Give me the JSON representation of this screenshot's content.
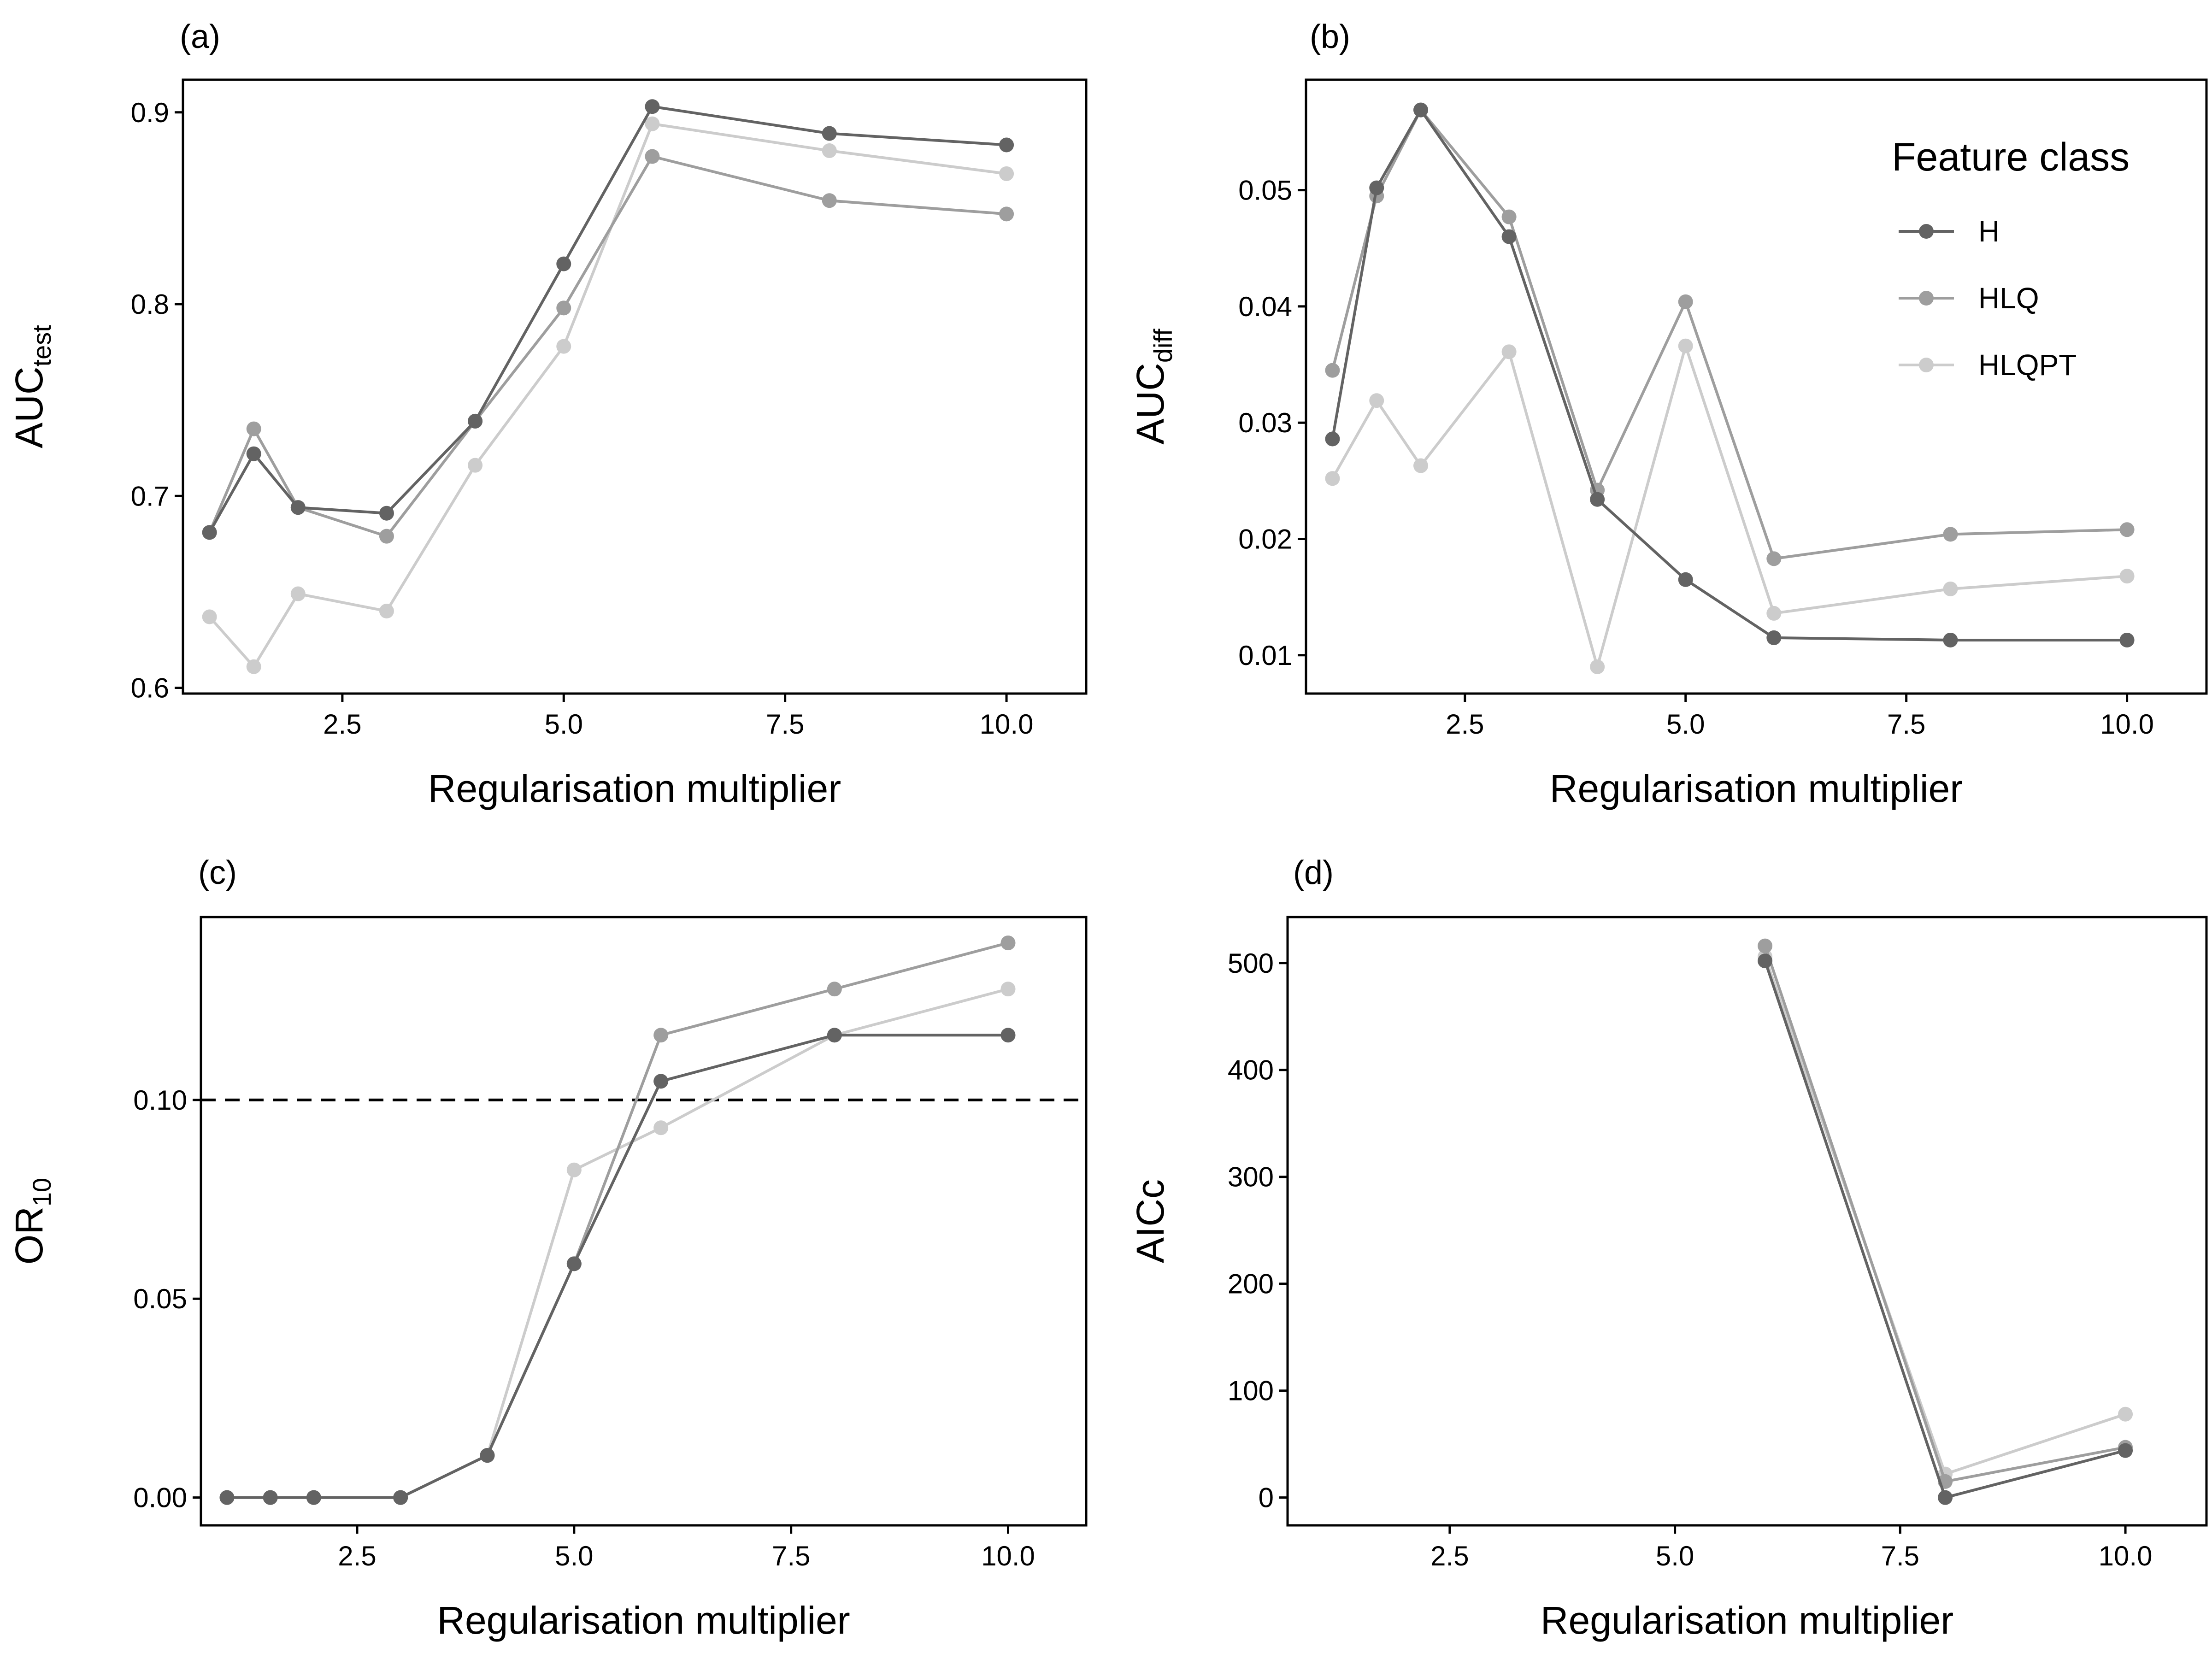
{
  "colors": {
    "H": "#636363",
    "HLQ": "#9e9e9e",
    "HLQPT": "#cccccc",
    "axis": "#000000",
    "reference_line": "#000000"
  },
  "legend": {
    "title": "Feature class",
    "entries": [
      {
        "key": "H",
        "label": "H"
      },
      {
        "key": "HLQ",
        "label": "HLQ"
      },
      {
        "key": "HLQPT",
        "label": "HLQPT"
      }
    ]
  },
  "chart_data": [
    {
      "type": "line",
      "tag": "(a)",
      "xlabel": "Regularisation multiplier",
      "ylabel_main": "AUC",
      "ylabel_sub": "test",
      "xlim": [
        0.7,
        10.9
      ],
      "ylim": [
        0.597,
        0.917
      ],
      "xticks": [
        2.5,
        5.0,
        7.5,
        10.0
      ],
      "xtick_labels": [
        "2.5",
        "5.0",
        "7.5",
        "10.0"
      ],
      "yticks": [
        0.6,
        0.7,
        0.8,
        0.9
      ],
      "ytick_labels": [
        "0.6",
        "0.7",
        "0.8",
        "0.9"
      ],
      "legend": false,
      "series": [
        {
          "name": "H",
          "x": [
            1,
            1.5,
            2,
            3,
            4,
            5,
            6,
            8,
            10
          ],
          "y": [
            0.681,
            0.722,
            0.694,
            0.691,
            0.739,
            0.821,
            0.903,
            0.889,
            0.883
          ]
        },
        {
          "name": "HLQ",
          "x": [
            1,
            1.5,
            2,
            3,
            4,
            5,
            6,
            8,
            10
          ],
          "y": [
            0.681,
            0.735,
            0.694,
            0.679,
            0.739,
            0.798,
            0.877,
            0.854,
            0.847
          ]
        },
        {
          "name": "HLQPT",
          "x": [
            1,
            1.5,
            2,
            3,
            4,
            5,
            6,
            8,
            10
          ],
          "y": [
            0.637,
            0.611,
            0.649,
            0.64,
            0.716,
            0.778,
            0.894,
            0.88,
            0.868
          ]
        }
      ]
    },
    {
      "type": "line",
      "tag": "(b)",
      "xlabel": "Regularisation multiplier",
      "ylabel_main": "AUC",
      "ylabel_sub": "diff",
      "xlim": [
        0.7,
        10.9
      ],
      "ylim": [
        0.0067,
        0.0595
      ],
      "xticks": [
        2.5,
        5.0,
        7.5,
        10.0
      ],
      "xtick_labels": [
        "2.5",
        "5.0",
        "7.5",
        "10.0"
      ],
      "yticks": [
        0.01,
        0.02,
        0.03,
        0.04,
        0.05
      ],
      "ytick_labels": [
        "0.01",
        "0.02",
        "0.03",
        "0.04",
        "0.05"
      ],
      "legend": true,
      "legend_position": "top-right",
      "series": [
        {
          "name": "H",
          "x": [
            1,
            1.5,
            2,
            3,
            4,
            5,
            6,
            8,
            10
          ],
          "y": [
            0.0286,
            0.0502,
            0.0569,
            0.046,
            0.0234,
            0.0165,
            0.0115,
            0.0113,
            0.0113
          ]
        },
        {
          "name": "HLQ",
          "x": [
            1,
            1.5,
            2,
            3,
            4,
            5,
            6,
            8,
            10
          ],
          "y": [
            0.0345,
            0.0495,
            0.0569,
            0.0477,
            0.0242,
            0.0404,
            0.0183,
            0.0204,
            0.0208
          ]
        },
        {
          "name": "HLQPT",
          "x": [
            1,
            1.5,
            2,
            3,
            4,
            5,
            6,
            8,
            10
          ],
          "y": [
            0.0252,
            0.0319,
            0.0263,
            0.0361,
            0.009,
            0.0366,
            0.0136,
            0.0157,
            0.0168
          ]
        }
      ]
    },
    {
      "type": "line",
      "tag": "(c)",
      "xlabel": "Regularisation multiplier",
      "ylabel_main": "OR",
      "ylabel_sub": "10",
      "xlim": [
        0.7,
        10.9
      ],
      "ylim": [
        -0.007,
        0.146
      ],
      "xticks": [
        2.5,
        5.0,
        7.5,
        10.0
      ],
      "xtick_labels": [
        "2.5",
        "5.0",
        "7.5",
        "10.0"
      ],
      "yticks": [
        0.0,
        0.05,
        0.1
      ],
      "ytick_labels": [
        "0.00",
        "0.05",
        "0.10"
      ],
      "reference_line": 0.1,
      "legend": false,
      "series": [
        {
          "name": "H",
          "x": [
            1,
            1.5,
            2,
            3,
            4,
            5,
            6,
            8,
            10
          ],
          "y": [
            0,
            0,
            0,
            0,
            0.0106,
            0.0588,
            0.1047,
            0.1163,
            0.1163
          ]
        },
        {
          "name": "HLQ",
          "x": [
            1,
            1.5,
            2,
            3,
            4,
            5,
            6,
            8,
            10
          ],
          "y": [
            0,
            0,
            0,
            0,
            0.0106,
            0.0588,
            0.1163,
            0.1279,
            0.1395
          ]
        },
        {
          "name": "HLQPT",
          "x": [
            1,
            1.5,
            2,
            3,
            4,
            5,
            6,
            8,
            10
          ],
          "y": [
            0,
            0,
            0,
            0,
            0.0106,
            0.0824,
            0.093,
            0.1163,
            0.1279
          ]
        }
      ]
    },
    {
      "type": "line",
      "tag": "(d)",
      "xlabel": "Regularisation multiplier",
      "ylabel_main": "AICc",
      "ylabel_sub": "",
      "xlim": [
        0.7,
        10.9
      ],
      "ylim": [
        -26,
        543
      ],
      "xticks": [
        2.5,
        5.0,
        7.5,
        10.0
      ],
      "xtick_labels": [
        "2.5",
        "5.0",
        "7.5",
        "10.0"
      ],
      "yticks": [
        0,
        100,
        200,
        300,
        400,
        500
      ],
      "ytick_labels": [
        "0",
        "100",
        "200",
        "300",
        "400",
        "500"
      ],
      "legend": false,
      "series": [
        {
          "name": "H",
          "x": [
            6,
            8,
            10
          ],
          "y": [
            502,
            0,
            44
          ]
        },
        {
          "name": "HLQ",
          "x": [
            6,
            8,
            10
          ],
          "y": [
            516,
            15,
            47
          ]
        },
        {
          "name": "HLQPT",
          "x": [
            6,
            8,
            10
          ],
          "y": [
            506,
            22,
            78
          ]
        }
      ]
    }
  ]
}
